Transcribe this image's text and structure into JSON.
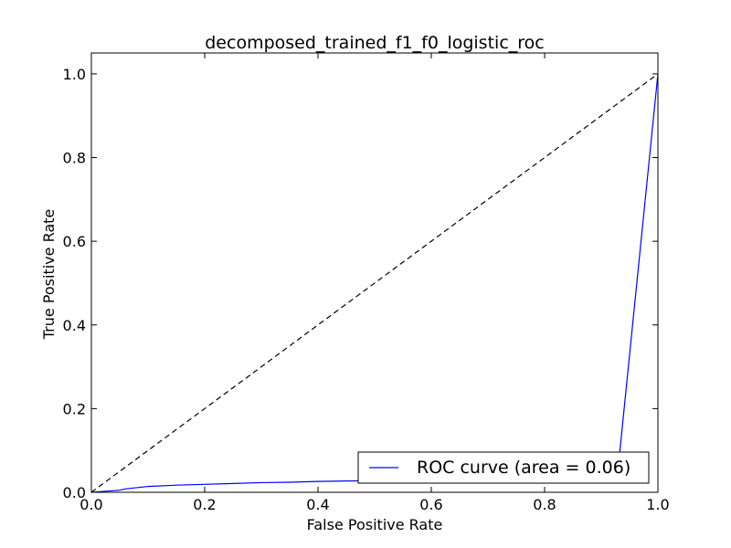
{
  "chart_data": {
    "type": "line",
    "title": "decomposed_trained_f1_f0_logistic_roc",
    "xlabel": "False Positive Rate",
    "ylabel": "True Positive Rate",
    "xlim": [
      0.0,
      1.0
    ],
    "ylim": [
      0.0,
      1.05
    ],
    "x_ticks": [
      "0.0",
      "0.2",
      "0.4",
      "0.6",
      "0.8",
      "1.0"
    ],
    "y_ticks": [
      "0.0",
      "0.2",
      "0.4",
      "0.6",
      "0.8",
      "1.0"
    ],
    "grid": false,
    "legend": {
      "placement": "lower-right",
      "entries": [
        "ROC curve (area = 0.06)"
      ]
    },
    "series": [
      {
        "name": "ROC curve (area = 0.06)",
        "color": "#0000ff",
        "style": "solid",
        "x": [
          0.0,
          0.01,
          0.02,
          0.04,
          0.05,
          0.06,
          0.08,
          0.1,
          0.15,
          0.2,
          0.25,
          0.3,
          0.35,
          0.4,
          0.45,
          0.5,
          0.55,
          0.6,
          0.65,
          0.7,
          0.75,
          0.8,
          0.85,
          0.9,
          0.93,
          1.0
        ],
        "y": [
          0.0,
          0.001,
          0.002,
          0.004,
          0.005,
          0.008,
          0.011,
          0.014,
          0.017,
          0.019,
          0.021,
          0.023,
          0.024,
          0.026,
          0.027,
          0.028,
          0.03,
          0.032,
          0.034,
          0.036,
          0.038,
          0.04,
          0.045,
          0.05,
          0.06,
          1.0
        ]
      },
      {
        "name": "",
        "color": "#000000",
        "style": "dashed",
        "x": [
          0.0,
          1.0
        ],
        "y": [
          0.0,
          1.0
        ]
      }
    ]
  }
}
